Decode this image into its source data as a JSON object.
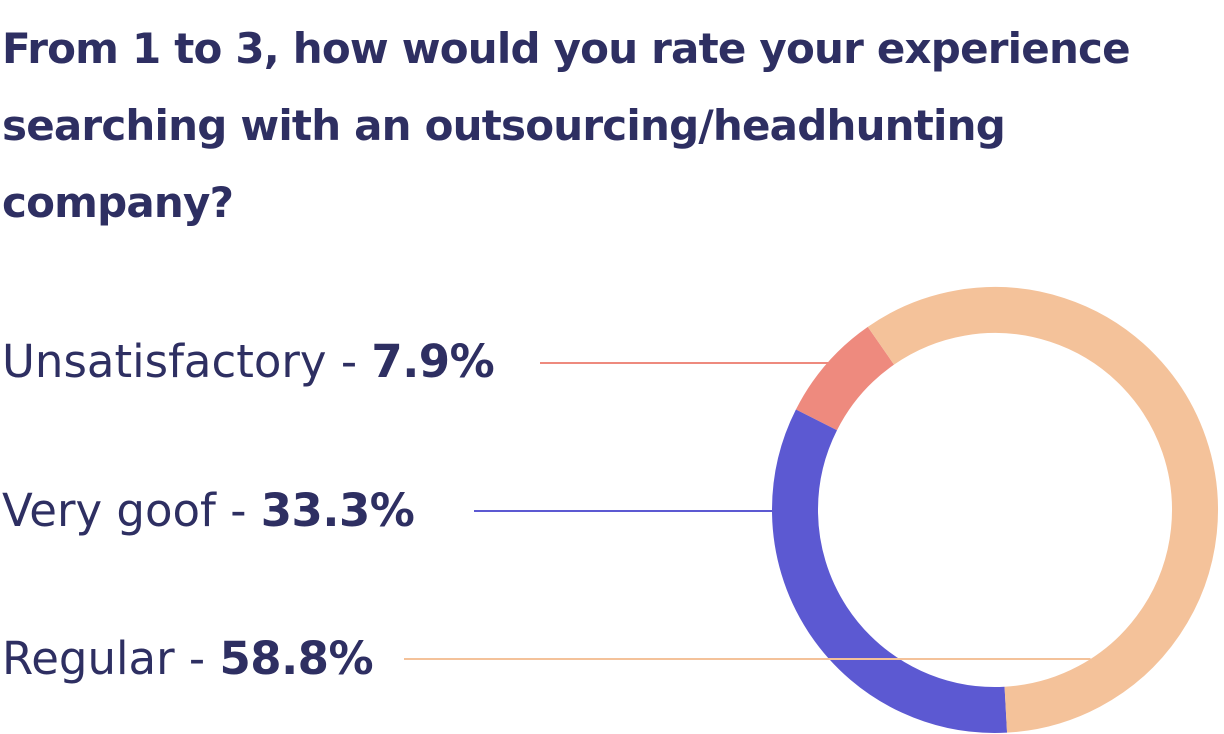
{
  "title": "From 1 to 3, how would you rate your experience searching with an outsourcing/headhunting company?",
  "separator": " - ",
  "colors": {
    "text": "#2e2f62",
    "background": "#ffffff"
  },
  "chart_data": {
    "type": "pie",
    "donut": true,
    "title": "From 1 to 3, how would you rate your experience searching with an outsourcing/headhunting company?",
    "legend_placement": "left",
    "slices": [
      {
        "label": "Unsatisfactory",
        "value": 7.9,
        "value_label": "7.9%",
        "color": "#ee8a7e"
      },
      {
        "label": "Very goof",
        "value": 33.3,
        "value_label": "33.3%",
        "color": "#5c59d2"
      },
      {
        "label": "Regular",
        "value": 58.8,
        "value_label": "58.8%",
        "color": "#f4c29a"
      }
    ]
  }
}
